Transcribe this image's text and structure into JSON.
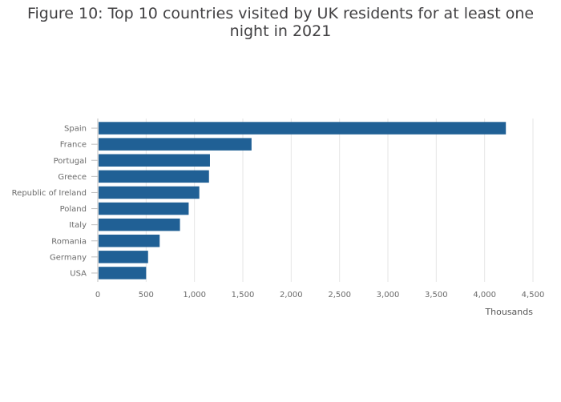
{
  "chart_data": {
    "type": "bar",
    "orientation": "horizontal",
    "title": "Figure 10: Top 10 countries visited by UK residents for at least one night in 2021",
    "categories": [
      "Spain",
      "France",
      "Portugal",
      "Greece",
      "Republic of Ireland",
      "Poland",
      "Italy",
      "Romania",
      "Germany",
      "USA"
    ],
    "values": [
      4220,
      1590,
      1160,
      1150,
      1050,
      940,
      850,
      640,
      520,
      500
    ],
    "xlabel": "Thousands",
    "ylabel": "",
    "xlim": [
      0,
      4500
    ],
    "xticks": [
      0,
      500,
      1000,
      1500,
      2000,
      2500,
      3000,
      3500,
      4000,
      4500
    ],
    "xtick_labels": [
      "0",
      "500",
      "1,000",
      "1,500",
      "2,000",
      "2,500",
      "3,000",
      "3,500",
      "4,000",
      "4,500"
    ],
    "grid": true,
    "bar_color": "#206095"
  }
}
